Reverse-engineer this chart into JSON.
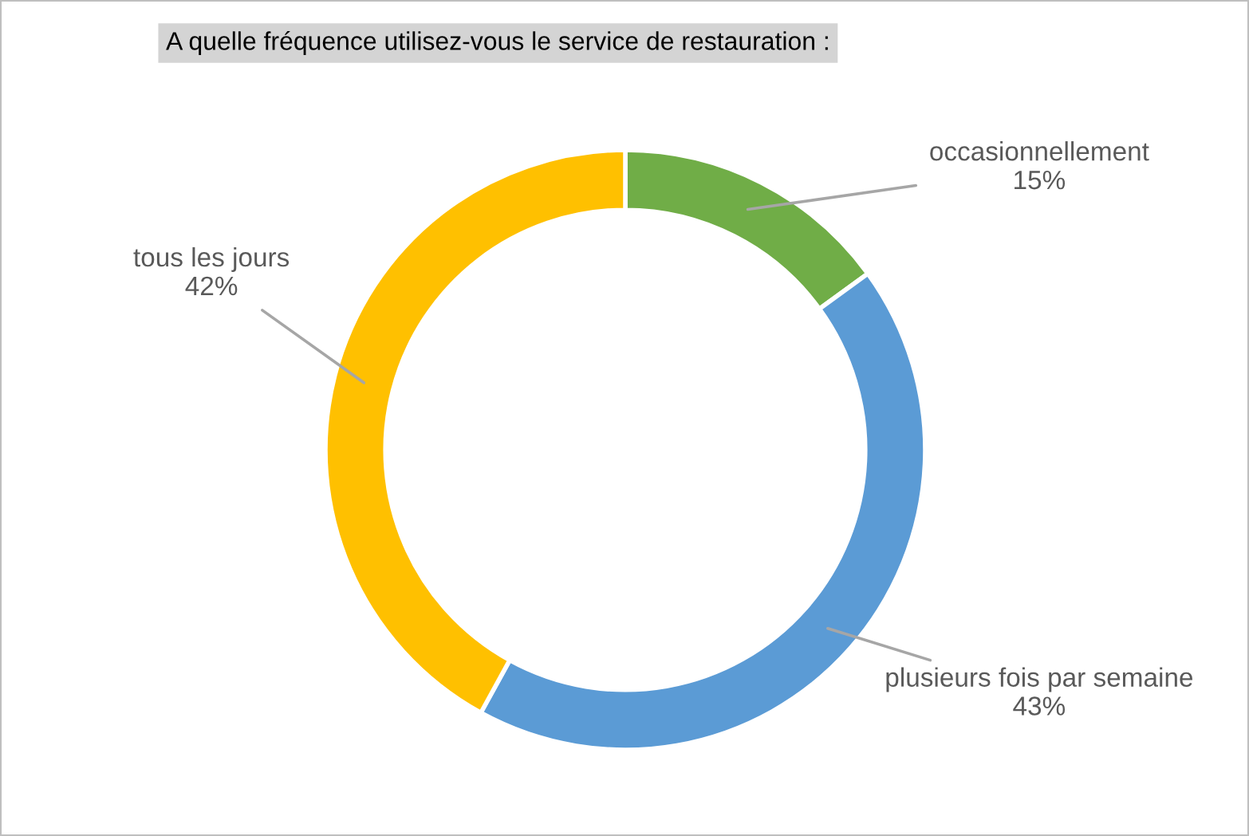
{
  "chart_data": {
    "type": "donut",
    "title": "A quelle fréquence utilisez-vous le service de restauration :",
    "categories": [
      "occasionnellement",
      "plusieurs fois par semaine",
      "tous les jours"
    ],
    "values": [
      15,
      43,
      42
    ],
    "colors": [
      "#70ad47",
      "#5b9bd5",
      "#ffc000"
    ],
    "value_labels": [
      "15%",
      "43%",
      "42%"
    ]
  }
}
